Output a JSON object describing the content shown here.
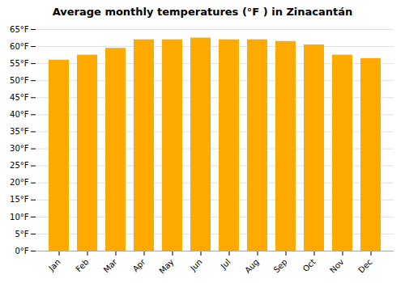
{
  "chart_data": {
    "type": "bar",
    "title": "Average monthly temperatures (°F ) in Zinacantán",
    "categories": [
      "Jan",
      "Feb",
      "Mar",
      "Apr",
      "May",
      "Jun",
      "Jul",
      "Aug",
      "Sep",
      "Oct",
      "Nov",
      "Dec"
    ],
    "values": [
      56,
      57.5,
      59.5,
      62,
      62,
      62.5,
      62,
      62,
      61.5,
      60.5,
      57.5,
      56.5
    ],
    "color": "#FFAA00",
    "ylim": [
      0,
      65
    ],
    "yticks": [
      {
        "value": 0,
        "label": "0°F"
      },
      {
        "value": 5,
        "label": "5°F"
      },
      {
        "value": 10,
        "label": "10°F"
      },
      {
        "value": 15,
        "label": "15°F"
      },
      {
        "value": 20,
        "label": "20°F"
      },
      {
        "value": 25,
        "label": "25°F"
      },
      {
        "value": 30,
        "label": "30°F"
      },
      {
        "value": 35,
        "label": "35°F"
      },
      {
        "value": 40,
        "label": "40°F"
      },
      {
        "value": 45,
        "label": "45°F"
      },
      {
        "value": 50,
        "label": "50°F"
      },
      {
        "value": 55,
        "label": "55°F"
      },
      {
        "value": 60,
        "label": "60°F"
      },
      {
        "value": 65,
        "label": "65°F"
      }
    ],
    "grid": true
  }
}
